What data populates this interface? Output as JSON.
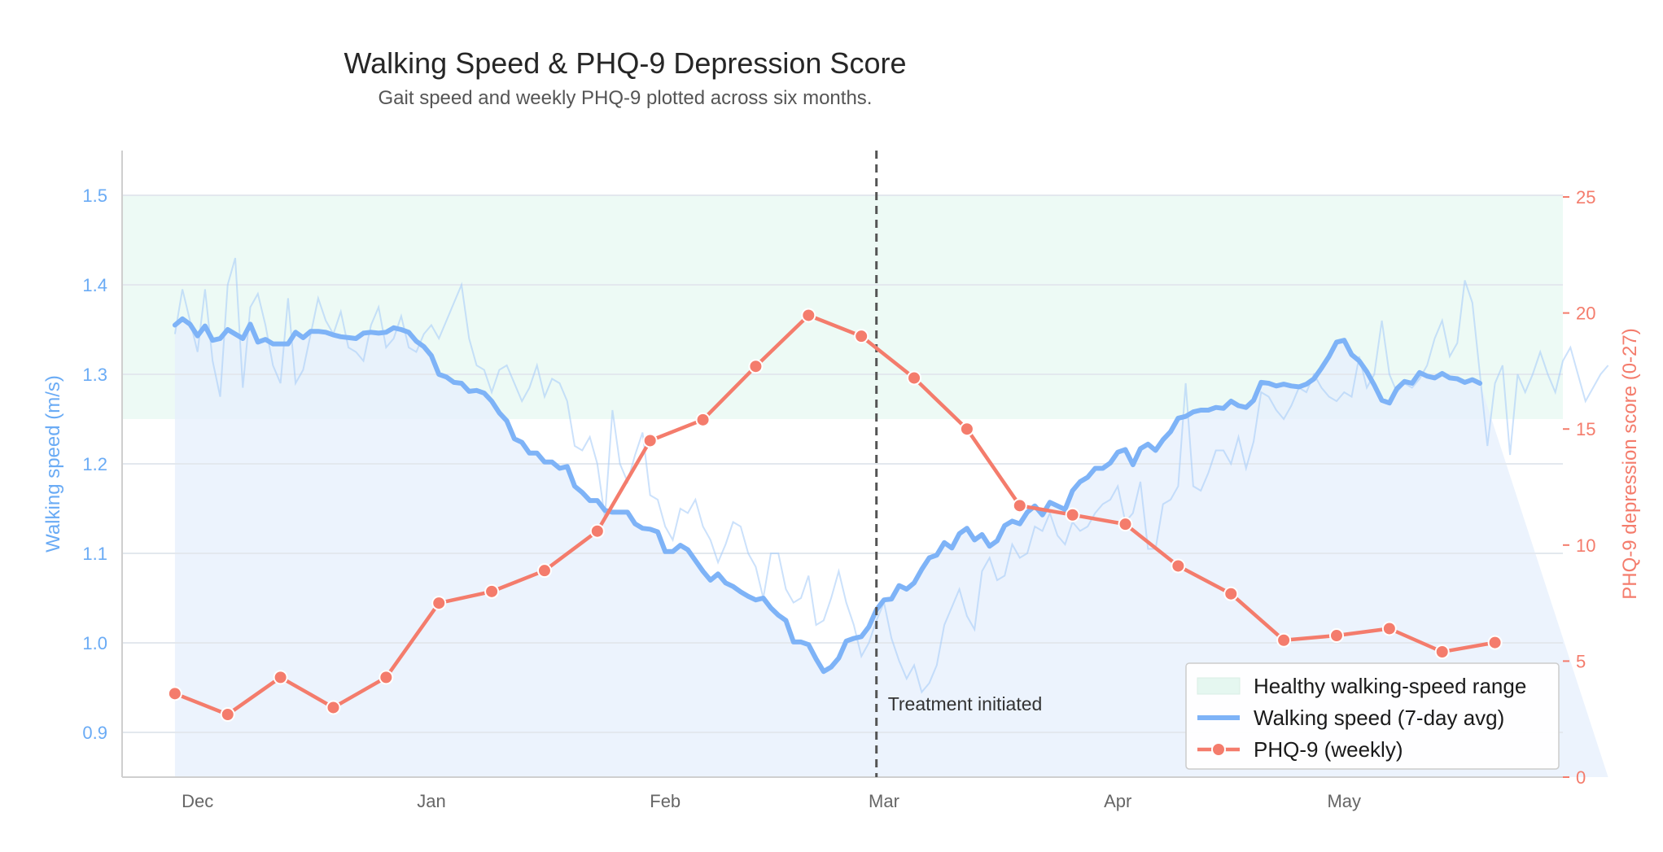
{
  "chart_data": {
    "type": "line",
    "title": "Walking Speed & PHQ-9 Depression Score",
    "subtitle": "Gait speed and weekly PHQ-9 plotted across six months.",
    "x_axis": {
      "type": "date",
      "range": [
        "2023-11-21",
        "2024-05-30"
      ],
      "ticks": [
        {
          "date": "2023-12-01",
          "label": "Dec"
        },
        {
          "date": "2024-01-01",
          "label": "Jan"
        },
        {
          "date": "2024-02-01",
          "label": "Feb"
        },
        {
          "date": "2024-03-01",
          "label": "Mar"
        },
        {
          "date": "2024-04-01",
          "label": "Apr"
        },
        {
          "date": "2024-05-01",
          "label": "May"
        }
      ]
    },
    "y_left": {
      "label": "Walking speed (m/s)",
      "range": [
        0.85,
        1.55
      ],
      "ticks": [
        "0.9",
        "1.0",
        "1.1",
        "1.2",
        "1.3",
        "1.4",
        "1.5"
      ],
      "color": "#6aabf5"
    },
    "y_right": {
      "label": "PHQ-9 depression score (0-27)",
      "range": [
        0,
        27
      ],
      "ticks": [
        "0",
        "5",
        "10",
        "15",
        "20",
        "25"
      ],
      "color": "#f47c6c"
    },
    "grid": "horizontal",
    "healthy_band": {
      "label": "Healthy walking-speed range",
      "y_min": 1.25,
      "y_max": 1.5,
      "color": "#dff5ec"
    },
    "annotation": {
      "label": "Treatment initiated",
      "date": "2024-02-29"
    },
    "series": [
      {
        "name": "Walking speed (7-day avg)",
        "axis": "left",
        "color": "#7eb3f7",
        "daily_values": [
          1.345,
          1.395,
          1.36,
          1.325,
          1.395,
          1.315,
          1.275,
          1.4,
          1.43,
          1.285,
          1.375,
          1.39,
          1.355,
          1.31,
          1.29,
          1.385,
          1.29,
          1.305,
          1.345,
          1.385,
          1.36,
          1.345,
          1.37,
          1.33,
          1.325,
          1.315,
          1.355,
          1.375,
          1.33,
          1.34,
          1.365,
          1.33,
          1.325,
          1.345,
          1.355,
          1.34,
          1.36,
          1.38,
          1.4,
          1.34,
          1.31,
          1.305,
          1.28,
          1.305,
          1.31,
          1.29,
          1.27,
          1.285,
          1.31,
          1.275,
          1.295,
          1.29,
          1.27,
          1.22,
          1.215,
          1.23,
          1.2,
          1.14,
          1.26,
          1.2,
          1.18,
          1.21,
          1.235,
          1.165,
          1.16,
          1.13,
          1.115,
          1.15,
          1.145,
          1.16,
          1.13,
          1.115,
          1.09,
          1.11,
          1.135,
          1.13,
          1.1,
          1.085,
          1.05,
          1.1,
          1.1,
          1.06,
          1.045,
          1.05,
          1.075,
          1.02,
          1.025,
          1.05,
          1.08,
          1.045,
          1.02,
          0.985,
          1.0,
          1.025,
          1.045,
          1.005,
          0.98,
          0.96,
          0.975,
          0.945,
          0.955,
          0.975,
          1.02,
          1.04,
          1.06,
          1.03,
          1.015,
          1.08,
          1.095,
          1.07,
          1.075,
          1.11,
          1.095,
          1.1,
          1.13,
          1.125,
          1.145,
          1.12,
          1.11,
          1.135,
          1.125,
          1.13,
          1.145,
          1.155,
          1.16,
          1.175,
          1.135,
          1.145,
          1.18,
          1.105,
          1.105,
          1.155,
          1.16,
          1.175,
          1.29,
          1.175,
          1.17,
          1.19,
          1.215,
          1.215,
          1.2,
          1.23,
          1.195,
          1.225,
          1.28,
          1.275,
          1.26,
          1.25,
          1.265,
          1.285,
          1.28,
          1.3,
          1.285,
          1.275,
          1.27,
          1.28,
          1.275,
          1.32,
          1.285,
          1.3,
          1.36,
          1.3,
          1.28,
          1.29,
          1.285,
          1.295,
          1.31,
          1.34,
          1.36,
          1.32,
          1.335,
          1.405,
          1.38,
          1.3,
          1.22,
          1.29,
          1.31,
          1.21,
          1.3,
          1.28,
          1.3,
          1.325,
          1.3,
          1.28,
          1.315,
          1.33,
          1.3,
          1.27,
          1.285,
          1.3,
          1.31
        ],
        "values": [
          1.353,
          1.362,
          1.355,
          1.343,
          1.355,
          1.337,
          1.34,
          1.35,
          1.345,
          1.34,
          1.357,
          1.34,
          1.339,
          1.334,
          1.334,
          1.334,
          1.347,
          1.342,
          1.349,
          1.348,
          1.347,
          1.345,
          1.343,
          1.342,
          1.341,
          1.344,
          1.348,
          1.346,
          1.348,
          1.35,
          1.35,
          1.346,
          1.337,
          1.332,
          1.319,
          1.3,
          1.296,
          1.29,
          1.289,
          1.281,
          1.282,
          1.284,
          1.275,
          1.263,
          1.25,
          1.232,
          1.225,
          1.212,
          1.211,
          1.198,
          1.198,
          1.192,
          1.196,
          1.175,
          1.16,
          1.158,
          1.148,
          1.146,
          1.145,
          1.145,
          1.134,
          1.128,
          1.128,
          1.125,
          1.102,
          1.108,
          1.098,
          1.083,
          1.07,
          1.078,
          1.066,
          1.062,
          1.055,
          1.048,
          1.051,
          1.038,
          1.03,
          1.003,
          1.0,
          0.997,
          0.974,
          0.978,
          0.99,
          1.003,
          1.005,
          1.012,
          1.03,
          1.05,
          1.053,
          1.06,
          1.07,
          1.09,
          1.1,
          1.11,
          1.105,
          1.12,
          1.13,
          1.12,
          1.115,
          1.125,
          1.14,
          1.14,
          1.14,
          1.15,
          1.155,
          1.15,
          1.165,
          1.18,
          1.195,
          1.2,
          1.205,
          1.21,
          1.22,
          1.23,
          1.225,
          1.235,
          1.245,
          1.25,
          1.26,
          1.27,
          1.275,
          1.28,
          1.285,
          1.29,
          1.295,
          1.29,
          1.3,
          1.305,
          1.31,
          1.3,
          1.3,
          1.29,
          1.28,
          1.27,
          1.28,
          1.29,
          1.29,
          1.3,
          1.29,
          1.3,
          1.295,
          1.295,
          1.295
        ],
        "avg_values": [
          1.355,
          1.362,
          1.356,
          1.343,
          1.354,
          1.338,
          1.34,
          1.35,
          1.345,
          1.34,
          1.356,
          1.336,
          1.339,
          1.334,
          1.334,
          1.334,
          1.347,
          1.341,
          1.348,
          1.348,
          1.347,
          1.344,
          1.342,
          1.341,
          1.34,
          1.346,
          1.347,
          1.346,
          1.347,
          1.352,
          1.35,
          1.347,
          1.337,
          1.331,
          1.321,
          1.3,
          1.297,
          1.291,
          1.29,
          1.281,
          1.282,
          1.279,
          1.27,
          1.257,
          1.248,
          1.228,
          1.224,
          1.212,
          1.212,
          1.202,
          1.202,
          1.195,
          1.197,
          1.175,
          1.168,
          1.159,
          1.159,
          1.148,
          1.146,
          1.146,
          1.146,
          1.133,
          1.128,
          1.127,
          1.124,
          1.102,
          1.102,
          1.109,
          1.104,
          1.092,
          1.08,
          1.07,
          1.077,
          1.067,
          1.063,
          1.057,
          1.052,
          1.048,
          1.05,
          1.039,
          1.031,
          1.025,
          1.001,
          1.001,
          0.998,
          0.982,
          0.968,
          0.973,
          0.983,
          1.002,
          1.005,
          1.007,
          1.018,
          1.037,
          1.048,
          1.049,
          1.064,
          1.06,
          1.067,
          1.082,
          1.095,
          1.098,
          1.112,
          1.106,
          1.122,
          1.128,
          1.115,
          1.121,
          1.108,
          1.114,
          1.131,
          1.136,
          1.133,
          1.146,
          1.153,
          1.143,
          1.157,
          1.153,
          1.149,
          1.17,
          1.18,
          1.185,
          1.195,
          1.195,
          1.201,
          1.213,
          1.216,
          1.199,
          1.217,
          1.222,
          1.215,
          1.227,
          1.236,
          1.251,
          1.253,
          1.258,
          1.26,
          1.26,
          1.263,
          1.262,
          1.27,
          1.265,
          1.263,
          1.271,
          1.291,
          1.29,
          1.287,
          1.289,
          1.287,
          1.286,
          1.289,
          1.295,
          1.307,
          1.32,
          1.336,
          1.338,
          1.322,
          1.315,
          1.303,
          1.288,
          1.271,
          1.268,
          1.284,
          1.292,
          1.29,
          1.302,
          1.298,
          1.296,
          1.301,
          1.296,
          1.295,
          1.291,
          1.294,
          1.29
        ]
      },
      {
        "name": "PHQ-9 (weekly)",
        "axis": "right",
        "color": "#f47c6c",
        "x": [
          "2023-11-28",
          "2023-12-05",
          "2023-12-12",
          "2023-12-19",
          "2023-12-26",
          "2024-01-02",
          "2024-01-09",
          "2024-01-16",
          "2024-01-23",
          "2024-01-30",
          "2024-02-06",
          "2024-02-13",
          "2024-02-20",
          "2024-02-27",
          "2024-03-05",
          "2024-03-12",
          "2024-03-19",
          "2024-03-26",
          "2024-04-02",
          "2024-04-09",
          "2024-04-16",
          "2024-04-23",
          "2024-04-30",
          "2024-05-07",
          "2024-05-14",
          "2024-05-21"
        ],
        "y": [
          3.6,
          2.7,
          4.3,
          3.0,
          4.3,
          7.5,
          8.0,
          8.9,
          10.6,
          14.5,
          15.4,
          17.7,
          19.9,
          19.0,
          17.2,
          15.0,
          11.7,
          11.3,
          10.9,
          9.1,
          7.9,
          5.9,
          6.1,
          6.4,
          5.4,
          5.8
        ]
      }
    ],
    "legend": {
      "position": "bottom-right",
      "items": [
        "Healthy walking-speed range",
        "Walking speed (7-day avg)",
        "PHQ-9 (weekly)"
      ]
    },
    "colors": {
      "raw_speed": "#a9cdf8",
      "speed_fill": "#e5effc",
      "treatment_line": "#555555",
      "grid": "#e3e8ee",
      "axis_spine": "#cfcfcf",
      "x_tick_label": "#666666"
    }
  }
}
